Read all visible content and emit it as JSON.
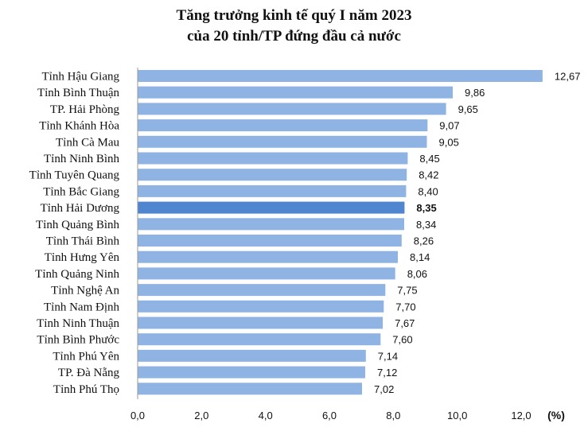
{
  "chart_data": {
    "type": "bar",
    "orientation": "horizontal",
    "title": "Tăng trưởng kinh tế quý I năm 2023",
    "subtitle": "của 20 tỉnh/TP đứng đầu cả nước",
    "xlabel": "(%)",
    "ylabel": "",
    "xlim": [
      0,
      13.0
    ],
    "ticks": [
      "0,0",
      "2,0",
      "4,0",
      "6,0",
      "8,0",
      "10,0",
      "12,0"
    ],
    "tick_values": [
      0,
      2,
      4,
      6,
      8,
      10,
      12
    ],
    "grid": false,
    "bar_color": "#8fb4e3",
    "highlight_color": "#4f86cf",
    "highlight_category": "Tỉnh Hải Dương",
    "categories": [
      "Tỉnh Hậu Giang",
      "Tỉnh Bình Thuận",
      "TP. Hải Phòng",
      "Tỉnh Khánh Hòa",
      "Tỉnh Cà Mau",
      "Tỉnh Ninh Bình",
      "Tỉnh Tuyên Quang",
      "Tỉnh Bắc Giang",
      "Tỉnh Hải Dương",
      "Tỉnh Quảng Bình",
      "Tỉnh Thái Bình",
      "Tỉnh Hưng Yên",
      "Tỉnh Quảng Ninh",
      "Tỉnh Nghệ An",
      "Tỉnh Nam Định",
      "Tỉnh Ninh Thuận",
      "Tỉnh Bình Phước",
      "Tỉnh Phú Yên",
      "TP. Đà Nẵng",
      "Tỉnh Phú Thọ"
    ],
    "values": [
      12.67,
      9.86,
      9.65,
      9.07,
      9.05,
      8.45,
      8.42,
      8.4,
      8.35,
      8.34,
      8.26,
      8.14,
      8.06,
      7.75,
      7.7,
      7.67,
      7.6,
      7.14,
      7.12,
      7.02
    ],
    "value_labels": [
      "12,67",
      "9,86",
      "9,65",
      "9,07",
      "9,05",
      "8,45",
      "8,42",
      "8,40",
      "8,35",
      "8,34",
      "8,26",
      "8,14",
      "8,06",
      "7,75",
      "7,70",
      "7,67",
      "7,60",
      "7,14",
      "7,12",
      "7,02"
    ]
  }
}
